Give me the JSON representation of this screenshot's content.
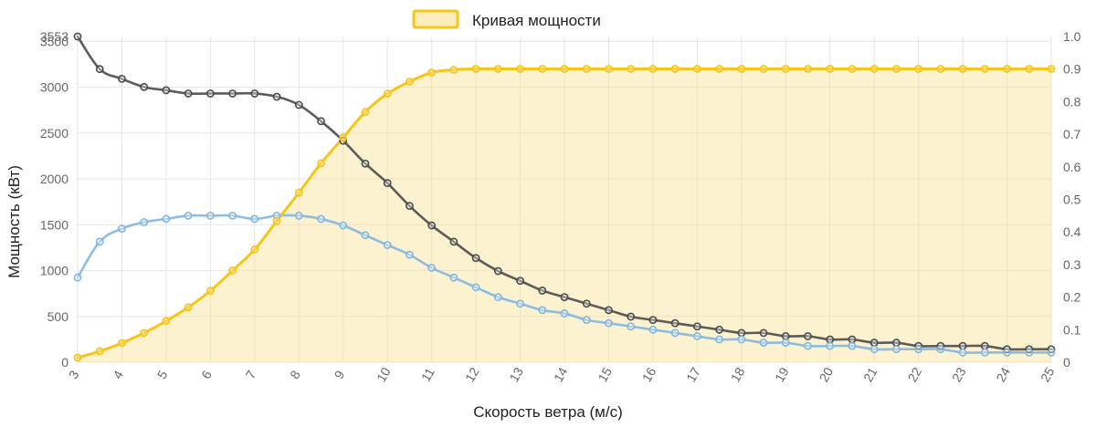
{
  "chart_data": {
    "type": "line",
    "legend": {
      "label": "Кривая мощности",
      "position": "top"
    },
    "xlabel": "Скорость ветра (м/с)",
    "ylabel": "Мощность (кВт)",
    "x": [
      3,
      3.5,
      4,
      4.5,
      5,
      5.5,
      6,
      6.5,
      7,
      7.5,
      8,
      8.5,
      9,
      9.5,
      10,
      10.5,
      11,
      11.5,
      12,
      12.5,
      13,
      13.5,
      14,
      14.5,
      15,
      15.5,
      16,
      16.5,
      17,
      17.5,
      18,
      18.5,
      19,
      19.5,
      20,
      20.5,
      21,
      21.5,
      22,
      22.5,
      23,
      23.5,
      24,
      24.5,
      25
    ],
    "xlim": [
      3,
      25
    ],
    "x_ticks": [
      "3",
      "4",
      "5",
      "6",
      "7",
      "8",
      "9",
      "10",
      "11",
      "12",
      "13",
      "14",
      "15",
      "16",
      "17",
      "18",
      "19",
      "20",
      "21",
      "22",
      "23",
      "24",
      "25"
    ],
    "y_left": {
      "lim": [
        0,
        3553
      ],
      "ticks": [
        "0",
        "500",
        "1000",
        "1500",
        "2000",
        "2500",
        "3000",
        "3500",
        "3553"
      ]
    },
    "y_right": {
      "lim": [
        0,
        1.0
      ],
      "ticks": [
        "0",
        "0.1",
        "0.2",
        "0.3",
        "0.4",
        "0.5",
        "0.6",
        "0.7",
        "0.8",
        "0.9",
        "1.0"
      ]
    },
    "grid": true,
    "series": [
      {
        "name": "Кривая мощности",
        "axis": "left",
        "color": "#f5c518",
        "fill": "rgba(250, 220, 130, 0.38)",
        "values": [
          50,
          120,
          210,
          320,
          450,
          600,
          780,
          1000,
          1230,
          1540,
          1850,
          2170,
          2450,
          2730,
          2930,
          3060,
          3160,
          3190,
          3200,
          3200,
          3200,
          3200,
          3200,
          3200,
          3200,
          3200,
          3200,
          3200,
          3200,
          3200,
          3200,
          3200,
          3200,
          3200,
          3200,
          3200,
          3200,
          3200,
          3200,
          3200,
          3200,
          3200,
          3200,
          3200,
          3200
        ]
      },
      {
        "axis": "right",
        "color": "#4a4a4a",
        "values": [
          1.0,
          0.9,
          0.87,
          0.845,
          0.835,
          0.825,
          0.825,
          0.825,
          0.825,
          0.815,
          0.79,
          0.74,
          0.68,
          0.61,
          0.55,
          0.48,
          0.42,
          0.37,
          0.32,
          0.28,
          0.25,
          0.22,
          0.2,
          0.18,
          0.16,
          0.14,
          0.13,
          0.12,
          0.11,
          0.1,
          0.09,
          0.09,
          0.08,
          0.08,
          0.07,
          0.07,
          0.06,
          0.06,
          0.05,
          0.05,
          0.05,
          0.05,
          0.04,
          0.04,
          0.04
        ]
      },
      {
        "axis": "right",
        "color": "#7fb6e2",
        "values": [
          0.26,
          0.37,
          0.41,
          0.43,
          0.44,
          0.45,
          0.45,
          0.45,
          0.44,
          0.45,
          0.45,
          0.44,
          0.42,
          0.39,
          0.36,
          0.33,
          0.29,
          0.26,
          0.23,
          0.2,
          0.18,
          0.16,
          0.15,
          0.13,
          0.12,
          0.11,
          0.1,
          0.09,
          0.08,
          0.07,
          0.07,
          0.06,
          0.06,
          0.05,
          0.05,
          0.05,
          0.04,
          0.04,
          0.04,
          0.04,
          0.03,
          0.03,
          0.03,
          0.03,
          0.03
        ]
      }
    ]
  }
}
